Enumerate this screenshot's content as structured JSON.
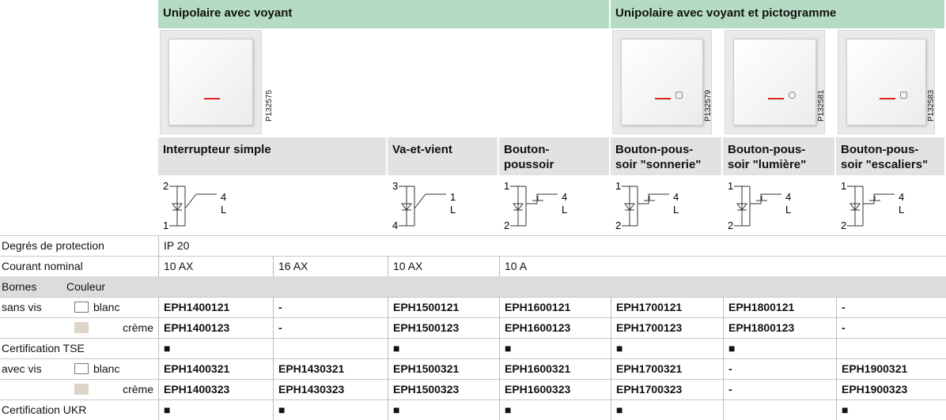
{
  "header": {
    "groups": [
      {
        "label": "Unipolaire avec voyant",
        "span": 4
      },
      {
        "label": "Unipolaire avec voyant et pictogramme",
        "span": 3
      }
    ]
  },
  "products": [
    {
      "name": "Interrupteur simple",
      "span": 2,
      "image": "P132575",
      "terminals": [
        "2",
        "1",
        "4",
        "L"
      ]
    },
    {
      "name": "Va-et-vient",
      "terminals": [
        "3",
        "4",
        "1",
        "L"
      ]
    },
    {
      "name": "Bouton-\npoussoir",
      "terminals": [
        "1",
        "2",
        "4",
        "L"
      ]
    },
    {
      "name": "Bouton-pous-\nsoir \"sonnerie\"",
      "image": "P132579",
      "terminals": [
        "1",
        "2",
        "4",
        "L"
      ]
    },
    {
      "name": "Bouton-pous-\nsoir \"lumière\"",
      "image": "P132581",
      "terminals": [
        "1",
        "2",
        "4",
        "L"
      ]
    },
    {
      "name": "Bouton-pous-\nsoir \"escaliers\"",
      "image": "P132583",
      "terminals": [
        "1",
        "2",
        "4",
        "L"
      ]
    }
  ],
  "specs": [
    {
      "label": "Degrés de protection",
      "cells": [
        {
          "text": "IP 20",
          "span": 7
        }
      ]
    },
    {
      "label": "Courant nominal",
      "cells": [
        {
          "text": "10 AX"
        },
        {
          "text": "16 AX"
        },
        {
          "text": "10 AX"
        },
        {
          "text": "10 A",
          "span": 4
        }
      ]
    }
  ],
  "terminals_header": {
    "bornes": "Bornes",
    "couleur": "Couleur"
  },
  "sections": [
    {
      "label": "sans vis",
      "variants": [
        {
          "color": "blanc",
          "cells": [
            "EPH1400121",
            "-",
            "EPH1500121",
            "EPH1600121",
            "EPH1700121",
            "EPH1800121",
            "-"
          ]
        },
        {
          "color": "crème",
          "cells": [
            "EPH1400123",
            "-",
            "EPH1500123",
            "EPH1600123",
            "EPH1700123",
            "EPH1800123",
            "-"
          ]
        }
      ],
      "certification": {
        "label": "Certification TSE",
        "cells": [
          "■",
          null,
          "■",
          "■",
          "■",
          "■",
          null
        ]
      }
    },
    {
      "label": "avec vis",
      "variants": [
        {
          "color": "blanc",
          "cells": [
            "EPH1400321",
            "EPH1430321",
            "EPH1500321",
            "EPH1600321",
            "EPH1700321",
            "-",
            "EPH1900321"
          ]
        },
        {
          "color": "crème",
          "cells": [
            "EPH1400323",
            "EPH1430323",
            "EPH1500323",
            "EPH1600323",
            "EPH1700323",
            "-",
            "EPH1900323"
          ]
        }
      ],
      "certification": {
        "label": "Certification UKR",
        "cells": [
          "■",
          "■",
          "■",
          "■",
          "■",
          null,
          "■"
        ]
      }
    }
  ]
}
